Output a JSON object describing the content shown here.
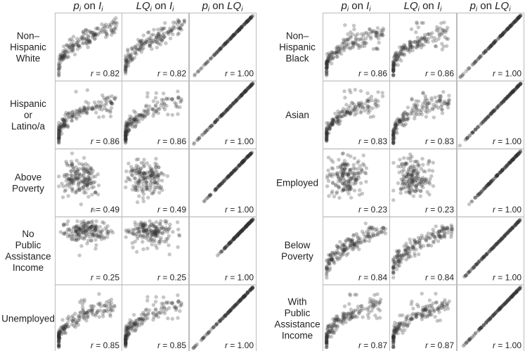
{
  "column_headers": [
    "pᵢ on Iᵢ",
    "LQᵢ on Iᵢ",
    "pᵢ on LQᵢ"
  ],
  "header_parts": [
    {
      "a": "p",
      "sub": "i",
      "mid": " on ",
      "b": "I",
      "sub2": "i"
    },
    {
      "a": "LQ",
      "sub": "i",
      "mid": " on ",
      "b": "I",
      "sub2": "i"
    },
    {
      "a": "p",
      "sub": "i",
      "mid": " on ",
      "b": "LQ",
      "sub2": "i"
    }
  ],
  "colors": {
    "points": "#333333",
    "frame": "#bbbbbb",
    "text": "#222222"
  },
  "chart_data": [
    {
      "type": "scatter",
      "panel_group": "left",
      "rows": [
        {
          "label": [
            "Non–",
            "Hispanic",
            "White"
          ],
          "pattern": "concave",
          "r": [
            "r = 0.82",
            "r = 0.82",
            "r = 1.00"
          ]
        },
        {
          "label": [
            "Hispanic",
            "or",
            "Latino/a"
          ],
          "pattern": "steep",
          "r": [
            "r = 0.86",
            "r = 0.86",
            "r = 1.00"
          ]
        },
        {
          "label": [
            "Above",
            "Poverty"
          ],
          "pattern": "cloud",
          "r": [
            "r = 0.49",
            "r = 0.49",
            "r = 1.00"
          ]
        },
        {
          "label": [
            "No",
            "Public",
            "Assistance",
            "Income"
          ],
          "pattern": "top-cloud",
          "r": [
            "r = 0.25",
            "r = 0.25",
            "r = 1.00"
          ]
        },
        {
          "label": [
            "Unemployed"
          ],
          "pattern": "steep",
          "r": [
            "r = 0.85",
            "r = 0.85",
            "r = 1.00"
          ]
        }
      ]
    },
    {
      "type": "scatter",
      "panel_group": "right",
      "rows": [
        {
          "label": [
            "Non–",
            "Hispanic",
            "Black"
          ],
          "pattern": "steep",
          "r": [
            "r = 0.86",
            "r = 0.86",
            "r = 1.00"
          ]
        },
        {
          "label": [
            "Asian"
          ],
          "pattern": "steep",
          "r": [
            "r = 0.83",
            "r = 0.83",
            "r = 1.00"
          ]
        },
        {
          "label": [
            "Employed"
          ],
          "pattern": "wide-cloud",
          "r": [
            "r = 0.23",
            "r = 0.23",
            "r = 1.00"
          ]
        },
        {
          "label": [
            "Below",
            "Poverty"
          ],
          "pattern": "concave",
          "r": [
            "r = 0.84",
            "r = 0.84",
            "r = 1.00"
          ]
        },
        {
          "label": [
            "With",
            "Public",
            "Assistance",
            "Income"
          ],
          "pattern": "steep",
          "r": [
            "r = 0.87",
            "r = 0.87",
            "r = 1.00"
          ]
        }
      ]
    }
  ]
}
